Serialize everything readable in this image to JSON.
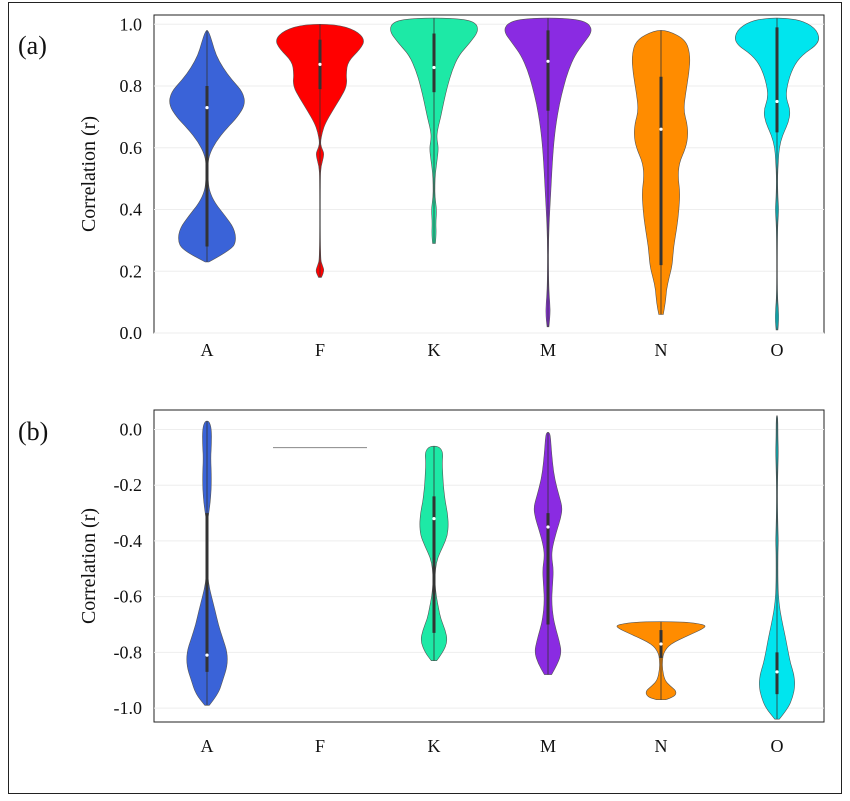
{
  "chart_data": [
    {
      "type": "violin",
      "panel_label": "(a)",
      "ylabel": "Correlation (r)",
      "ylim": [
        0.0,
        1.03
      ],
      "yticks": [
        "0.0",
        "0.2",
        "0.4",
        "0.6",
        "0.8",
        "1.0"
      ],
      "ytick_values": [
        0.0,
        0.2,
        0.4,
        0.6,
        0.8,
        1.0
      ],
      "categories": [
        "A",
        "F",
        "K",
        "M",
        "N",
        "O"
      ],
      "series": [
        {
          "category": "A",
          "color": "#3a63d8",
          "min": 0.23,
          "max": 0.98,
          "q1": 0.28,
          "q3": 0.8,
          "median": 0.73,
          "profile": [
            [
              0.23,
              0.04
            ],
            [
              0.27,
              0.55
            ],
            [
              0.3,
              0.65
            ],
            [
              0.34,
              0.6
            ],
            [
              0.38,
              0.4
            ],
            [
              0.42,
              0.18
            ],
            [
              0.46,
              0.05
            ],
            [
              0.5,
              0.02
            ],
            [
              0.55,
              0.02
            ],
            [
              0.58,
              0.06
            ],
            [
              0.62,
              0.2
            ],
            [
              0.66,
              0.42
            ],
            [
              0.7,
              0.68
            ],
            [
              0.74,
              0.85
            ],
            [
              0.78,
              0.8
            ],
            [
              0.82,
              0.55
            ],
            [
              0.86,
              0.35
            ],
            [
              0.9,
              0.2
            ],
            [
              0.94,
              0.12
            ],
            [
              0.98,
              0.03
            ]
          ]
        },
        {
          "category": "F",
          "color": "#ff0000",
          "min": 0.18,
          "max": 1.0,
          "q1": 0.79,
          "q3": 0.95,
          "median": 0.87,
          "profile": [
            [
              0.18,
              0.03
            ],
            [
              0.2,
              0.1
            ],
            [
              0.22,
              0.05
            ],
            [
              0.24,
              0.005
            ],
            [
              0.5,
              0.005
            ],
            [
              0.54,
              0.02
            ],
            [
              0.58,
              0.1
            ],
            [
              0.6,
              0.03
            ],
            [
              0.62,
              0.01
            ],
            [
              0.65,
              0.05
            ],
            [
              0.68,
              0.12
            ],
            [
              0.72,
              0.28
            ],
            [
              0.76,
              0.45
            ],
            [
              0.8,
              0.6
            ],
            [
              0.84,
              0.58
            ],
            [
              0.88,
              0.62
            ],
            [
              0.92,
              0.9
            ],
            [
              0.95,
              1.0
            ],
            [
              0.98,
              0.8
            ],
            [
              1.0,
              0.35
            ]
          ]
        },
        {
          "category": "K",
          "color": "#1de9a6",
          "min": 0.29,
          "max": 1.02,
          "q1": 0.78,
          "q3": 0.97,
          "median": 0.86,
          "profile": [
            [
              0.29,
              0.03
            ],
            [
              0.32,
              0.05
            ],
            [
              0.36,
              0.04
            ],
            [
              0.4,
              0.06
            ],
            [
              0.44,
              0.02
            ],
            [
              0.48,
              0.02
            ],
            [
              0.52,
              0.03
            ],
            [
              0.56,
              0.07
            ],
            [
              0.6,
              0.1
            ],
            [
              0.63,
              0.06
            ],
            [
              0.66,
              0.08
            ],
            [
              0.7,
              0.15
            ],
            [
              0.75,
              0.22
            ],
            [
              0.8,
              0.3
            ],
            [
              0.85,
              0.4
            ],
            [
              0.9,
              0.55
            ],
            [
              0.94,
              0.8
            ],
            [
              0.98,
              1.0
            ],
            [
              1.01,
              0.9
            ],
            [
              1.02,
              0.4
            ]
          ]
        },
        {
          "category": "M",
          "color": "#8a2be2",
          "min": 0.02,
          "max": 1.02,
          "q1": 0.72,
          "q3": 0.98,
          "median": 0.88,
          "profile": [
            [
              0.02,
              0.02
            ],
            [
              0.06,
              0.05
            ],
            [
              0.1,
              0.04
            ],
            [
              0.14,
              0.02
            ],
            [
              0.2,
              0.01
            ],
            [
              0.3,
              0.01
            ],
            [
              0.4,
              0.04
            ],
            [
              0.48,
              0.07
            ],
            [
              0.56,
              0.1
            ],
            [
              0.62,
              0.13
            ],
            [
              0.68,
              0.18
            ],
            [
              0.74,
              0.25
            ],
            [
              0.8,
              0.35
            ],
            [
              0.85,
              0.45
            ],
            [
              0.9,
              0.6
            ],
            [
              0.94,
              0.8
            ],
            [
              0.98,
              1.0
            ],
            [
              1.01,
              0.85
            ],
            [
              1.02,
              0.35
            ]
          ]
        },
        {
          "category": "N",
          "color": "#ff8c00",
          "min": 0.06,
          "max": 0.98,
          "q1": 0.22,
          "q3": 0.83,
          "median": 0.66,
          "profile": [
            [
              0.06,
              0.05
            ],
            [
              0.1,
              0.1
            ],
            [
              0.14,
              0.12
            ],
            [
              0.18,
              0.18
            ],
            [
              0.22,
              0.25
            ],
            [
              0.28,
              0.28
            ],
            [
              0.34,
              0.35
            ],
            [
              0.4,
              0.4
            ],
            [
              0.46,
              0.42
            ],
            [
              0.5,
              0.38
            ],
            [
              0.55,
              0.4
            ],
            [
              0.6,
              0.55
            ],
            [
              0.64,
              0.6
            ],
            [
              0.68,
              0.58
            ],
            [
              0.72,
              0.5
            ],
            [
              0.78,
              0.55
            ],
            [
              0.84,
              0.62
            ],
            [
              0.9,
              0.65
            ],
            [
              0.95,
              0.55
            ],
            [
              0.98,
              0.15
            ]
          ]
        },
        {
          "category": "O",
          "color": "#00e5ee",
          "min": 0.01,
          "max": 1.02,
          "q1": 0.65,
          "q3": 0.99,
          "median": 0.75,
          "profile": [
            [
              0.01,
              0.02
            ],
            [
              0.04,
              0.04
            ],
            [
              0.08,
              0.03
            ],
            [
              0.12,
              0.01
            ],
            [
              0.2,
              0.005
            ],
            [
              0.32,
              0.01
            ],
            [
              0.36,
              0.02
            ],
            [
              0.4,
              0.04
            ],
            [
              0.44,
              0.02
            ],
            [
              0.5,
              0.01
            ],
            [
              0.56,
              0.03
            ],
            [
              0.6,
              0.05
            ],
            [
              0.64,
              0.12
            ],
            [
              0.68,
              0.25
            ],
            [
              0.72,
              0.3
            ],
            [
              0.76,
              0.2
            ],
            [
              0.8,
              0.22
            ],
            [
              0.86,
              0.35
            ],
            [
              0.9,
              0.55
            ],
            [
              0.94,
              0.95
            ],
            [
              0.98,
              0.9
            ],
            [
              1.01,
              0.6
            ],
            [
              1.02,
              0.2
            ]
          ]
        }
      ]
    },
    {
      "type": "violin",
      "panel_label": "(b)",
      "ylabel": "Correlation (r)",
      "ylim": [
        -1.05,
        0.07
      ],
      "yticks": [
        "-1.0",
        "-0.8",
        "-0.6",
        "-0.4",
        "-0.2",
        "0.0"
      ],
      "ytick_values": [
        -1.0,
        -0.8,
        -0.6,
        -0.4,
        -0.2,
        0.0
      ],
      "categories": [
        "A",
        "F",
        "K",
        "M",
        "N",
        "O"
      ],
      "series": [
        {
          "category": "A",
          "color": "#3a63d8",
          "min": -0.99,
          "max": 0.03,
          "q1": -0.87,
          "q3": -0.3,
          "median": -0.81,
          "profile": [
            [
              -0.99,
              0.05
            ],
            [
              -0.95,
              0.25
            ],
            [
              -0.9,
              0.35
            ],
            [
              -0.85,
              0.45
            ],
            [
              -0.8,
              0.45
            ],
            [
              -0.75,
              0.35
            ],
            [
              -0.7,
              0.25
            ],
            [
              -0.65,
              0.18
            ],
            [
              -0.6,
              0.1
            ],
            [
              -0.55,
              0.03
            ],
            [
              -0.5,
              0.01
            ],
            [
              -0.4,
              0.005
            ],
            [
              -0.33,
              0.01
            ],
            [
              -0.3,
              0.04
            ],
            [
              -0.25,
              0.08
            ],
            [
              -0.18,
              0.1
            ],
            [
              -0.1,
              0.08
            ],
            [
              -0.05,
              0.1
            ],
            [
              0.0,
              0.1
            ],
            [
              0.03,
              0.05
            ]
          ]
        },
        {
          "category": "F",
          "color": "#888888",
          "min": -0.065,
          "max": -0.065,
          "q1": -0.065,
          "q3": -0.065,
          "median": -0.065,
          "profile": []
        },
        {
          "category": "K",
          "color": "#1de9a6",
          "min": -0.83,
          "max": -0.06,
          "q1": -0.73,
          "q3": -0.24,
          "median": -0.32,
          "profile": [
            [
              -0.83,
              0.06
            ],
            [
              -0.8,
              0.2
            ],
            [
              -0.76,
              0.3
            ],
            [
              -0.72,
              0.25
            ],
            [
              -0.68,
              0.15
            ],
            [
              -0.64,
              0.1
            ],
            [
              -0.6,
              0.05
            ],
            [
              -0.55,
              0.02
            ],
            [
              -0.5,
              0.03
            ],
            [
              -0.46,
              0.08
            ],
            [
              -0.42,
              0.2
            ],
            [
              -0.38,
              0.3
            ],
            [
              -0.34,
              0.32
            ],
            [
              -0.3,
              0.3
            ],
            [
              -0.26,
              0.25
            ],
            [
              -0.22,
              0.22
            ],
            [
              -0.18,
              0.2
            ],
            [
              -0.12,
              0.18
            ],
            [
              -0.08,
              0.2
            ],
            [
              -0.06,
              0.1
            ]
          ]
        },
        {
          "category": "M",
          "color": "#8a2be2",
          "min": -0.88,
          "max": -0.01,
          "q1": -0.7,
          "q3": -0.3,
          "median": -0.35,
          "profile": [
            [
              -0.88,
              0.08
            ],
            [
              -0.84,
              0.22
            ],
            [
              -0.8,
              0.3
            ],
            [
              -0.76,
              0.25
            ],
            [
              -0.72,
              0.18
            ],
            [
              -0.68,
              0.12
            ],
            [
              -0.62,
              0.08
            ],
            [
              -0.56,
              0.1
            ],
            [
              -0.5,
              0.12
            ],
            [
              -0.46,
              0.08
            ],
            [
              -0.42,
              0.1
            ],
            [
              -0.36,
              0.2
            ],
            [
              -0.32,
              0.28
            ],
            [
              -0.28,
              0.32
            ],
            [
              -0.24,
              0.25
            ],
            [
              -0.18,
              0.15
            ],
            [
              -0.12,
              0.1
            ],
            [
              -0.06,
              0.07
            ],
            [
              -0.02,
              0.05
            ],
            [
              -0.01,
              0.02
            ]
          ]
        },
        {
          "category": "N",
          "color": "#ff8c00",
          "min": -0.97,
          "max": -0.69,
          "q1": -0.82,
          "q3": -0.72,
          "median": -0.77,
          "profile": [
            [
              -0.97,
              0.1
            ],
            [
              -0.96,
              0.3
            ],
            [
              -0.94,
              0.35
            ],
            [
              -0.92,
              0.2
            ],
            [
              -0.9,
              0.08
            ],
            [
              -0.86,
              0.03
            ],
            [
              -0.83,
              0.03
            ],
            [
              -0.8,
              0.06
            ],
            [
              -0.77,
              0.2
            ],
            [
              -0.74,
              0.6
            ],
            [
              -0.71,
              1.0
            ],
            [
              -0.7,
              0.95
            ],
            [
              -0.69,
              0.5
            ]
          ]
        },
        {
          "category": "O",
          "color": "#00e5ee",
          "min": -1.04,
          "max": 0.05,
          "q1": -0.95,
          "q3": -0.8,
          "median": -0.87,
          "profile": [
            [
              -1.04,
              0.05
            ],
            [
              -1.0,
              0.25
            ],
            [
              -0.96,
              0.35
            ],
            [
              -0.92,
              0.4
            ],
            [
              -0.88,
              0.38
            ],
            [
              -0.84,
              0.3
            ],
            [
              -0.8,
              0.25
            ],
            [
              -0.74,
              0.18
            ],
            [
              -0.68,
              0.1
            ],
            [
              -0.62,
              0.04
            ],
            [
              -0.55,
              0.02
            ],
            [
              -0.45,
              0.02
            ],
            [
              -0.4,
              0.03
            ],
            [
              -0.35,
              0.02
            ],
            [
              -0.28,
              0.01
            ],
            [
              -0.2,
              0.01
            ],
            [
              -0.14,
              0.02
            ],
            [
              -0.08,
              0.03
            ],
            [
              -0.02,
              0.02
            ],
            [
              0.02,
              0.02
            ],
            [
              0.05,
              0.01
            ]
          ]
        }
      ]
    }
  ]
}
